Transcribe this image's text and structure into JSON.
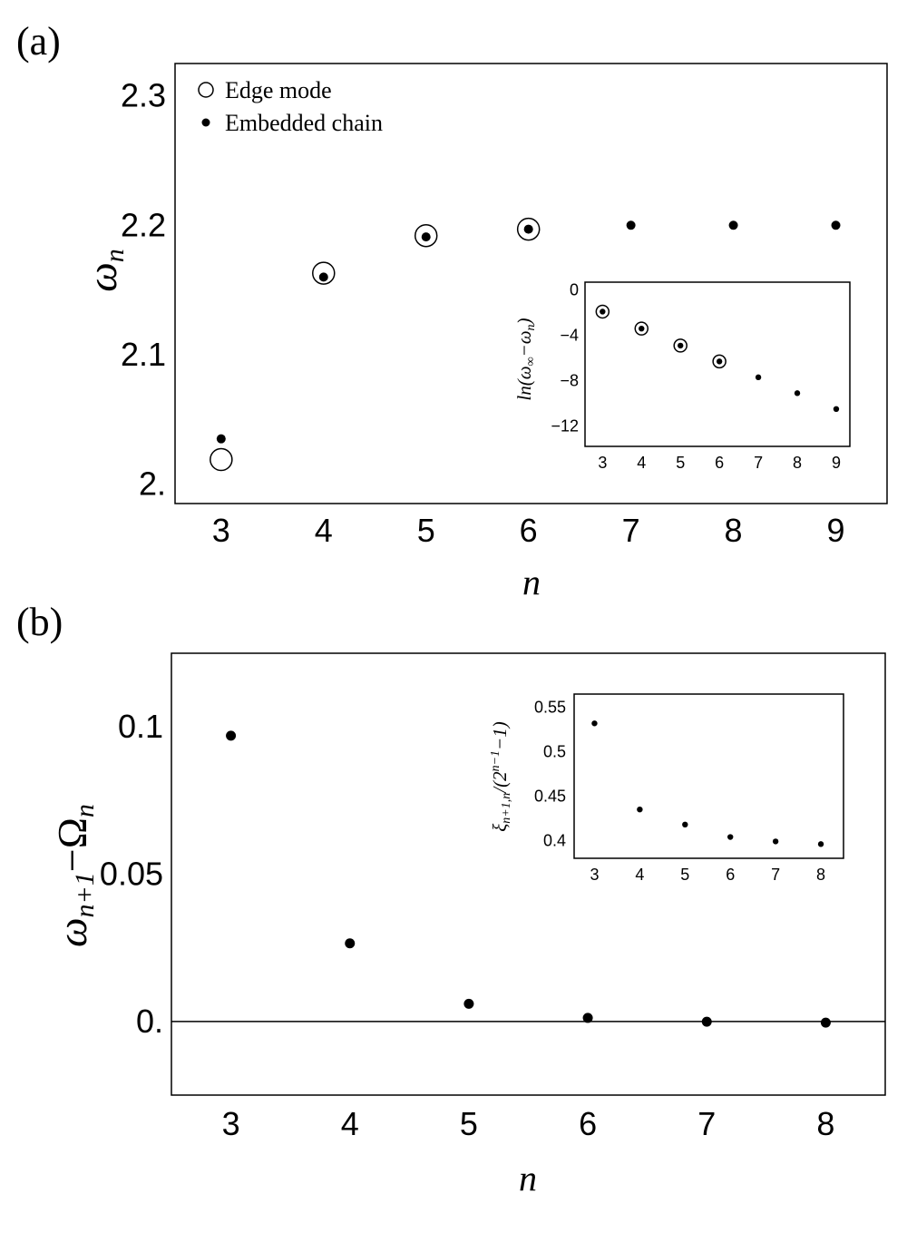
{
  "panels": {
    "a": "(a)",
    "b": "(b)"
  },
  "legend": {
    "edge": "Edge mode",
    "embedded": "Embedded chain"
  },
  "chart_data": [
    {
      "id": "a-main",
      "type": "scatter",
      "xlabel": "n",
      "ylabel": "ω_n",
      "xlim": [
        2.55,
        9.5
      ],
      "ylim": [
        1.985,
        2.325
      ],
      "xticks": [
        3,
        4,
        5,
        6,
        7,
        8,
        9
      ],
      "xtick_labels": [
        "3",
        "4",
        "5",
        "6",
        "7",
        "8",
        "9"
      ],
      "yticks": [
        2.0,
        2.1,
        2.2,
        2.3
      ],
      "ytick_labels": [
        "2.",
        "2.1",
        "2.2",
        "2.3"
      ],
      "legend_position": "top-left",
      "series": [
        {
          "name": "Edge mode",
          "marker": "open-circle",
          "x": [
            3,
            4,
            5,
            6
          ],
          "y": [
            2.019,
            2.163,
            2.192,
            2.197
          ]
        },
        {
          "name": "Embedded chain",
          "marker": "filled-dot",
          "x": [
            3,
            4,
            5,
            6,
            7,
            8,
            9
          ],
          "y": [
            2.035,
            2.16,
            2.191,
            2.197,
            2.2,
            2.2,
            2.2
          ]
        }
      ]
    },
    {
      "id": "a-inset",
      "type": "scatter",
      "ylabel": "ln(ω∞−ωn)",
      "xlim": [
        2.55,
        9.35
      ],
      "ylim": [
        -13.8,
        0.7
      ],
      "xticks": [
        3,
        4,
        5,
        6,
        7,
        8,
        9
      ],
      "xtick_labels": [
        "3",
        "4",
        "5",
        "6",
        "7",
        "8",
        "9"
      ],
      "yticks": [
        0,
        -4,
        -8,
        -12
      ],
      "ytick_labels": [
        "0",
        "−4",
        "−8",
        "−12"
      ],
      "series": [
        {
          "marker": "open-circle",
          "x": [
            3,
            4,
            5,
            6
          ],
          "y": [
            -1.9,
            -3.4,
            -4.9,
            -6.3
          ]
        },
        {
          "marker": "filled-dot",
          "x": [
            3,
            4,
            5,
            6,
            7,
            8,
            9
          ],
          "y": [
            -1.9,
            -3.4,
            -4.9,
            -6.3,
            -7.7,
            -9.1,
            -10.5
          ]
        }
      ]
    },
    {
      "id": "b-main",
      "type": "scatter",
      "xlabel": "n",
      "ylabel": "ω_{n+1}−Ω_n",
      "xlim": [
        2.5,
        8.5
      ],
      "ylim": [
        -0.025,
        0.125
      ],
      "xticks": [
        3,
        4,
        5,
        6,
        7,
        8
      ],
      "xtick_labels": [
        "3",
        "4",
        "5",
        "6",
        "7",
        "8"
      ],
      "yticks": [
        0.0,
        0.05,
        0.1
      ],
      "ytick_labels": [
        "0.",
        "0.05",
        "0.1"
      ],
      "zero_line": true,
      "series": [
        {
          "marker": "filled-dot",
          "x": [
            3,
            4,
            5,
            6,
            7,
            8
          ],
          "y": [
            0.097,
            0.0265,
            0.006,
            0.0012,
            -0.0001,
            -0.0004
          ]
        }
      ]
    },
    {
      "id": "b-inset",
      "type": "scatter",
      "ylabel": "ξn+1,n/(2n−1−1)",
      "xlim": [
        2.55,
        8.5
      ],
      "ylim": [
        0.38,
        0.565
      ],
      "xticks": [
        3,
        4,
        5,
        6,
        7,
        8
      ],
      "xtick_labels": [
        "3",
        "4",
        "5",
        "6",
        "7",
        "8"
      ],
      "yticks": [
        0.4,
        0.45,
        0.5,
        0.55
      ],
      "ytick_labels": [
        "0.4",
        "0.45",
        "0.5",
        "0.55"
      ],
      "series": [
        {
          "marker": "filled-dot",
          "x": [
            3,
            4,
            5,
            6,
            7,
            8
          ],
          "y": [
            0.532,
            0.435,
            0.418,
            0.404,
            0.399,
            0.396
          ]
        }
      ]
    }
  ]
}
